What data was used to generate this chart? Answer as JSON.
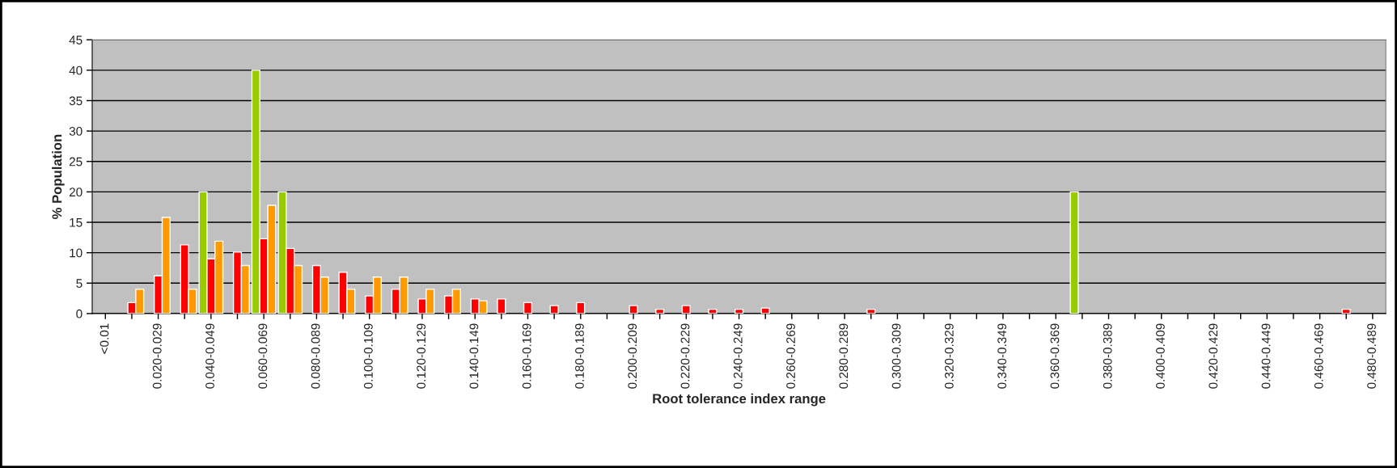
{
  "chart_data": {
    "type": "bar",
    "xlabel": "Root tolerance index range",
    "ylabel": "% Population",
    "categories": [
      "<0.01",
      null,
      "0.020-0.029",
      null,
      "0.040-0.049",
      null,
      "0.060-0.069",
      null,
      "0.080-0.089",
      null,
      "0.100-0.109",
      null,
      "0.120-0.129",
      null,
      "0.140-0.149",
      null,
      "0.160-0.169",
      null,
      "0.180-0.189",
      null,
      "0.200-0.209",
      null,
      "0.220-0.229",
      null,
      "0.240-0.249",
      null,
      "0.260-0.269",
      null,
      "0.280-0.289",
      null,
      "0.300-0.309",
      null,
      "0.320-0.329",
      null,
      "0.340-0.349",
      null,
      "0.360-0.369",
      null,
      "0.380-0.389",
      null,
      "0.400-0.409",
      null,
      "0.420-0.429",
      null,
      "0.440-0.449",
      null,
      "0.460-0.469",
      null,
      "0.480-0.489"
    ],
    "series": [
      {
        "color": "#99cc00",
        "values": [
          null,
          null,
          null,
          null,
          20,
          null,
          40,
          20,
          null,
          null,
          null,
          null,
          null,
          null,
          null,
          null,
          null,
          null,
          null,
          null,
          null,
          null,
          null,
          null,
          null,
          null,
          null,
          null,
          null,
          null,
          null,
          null,
          null,
          null,
          null,
          null,
          null,
          20,
          null,
          null,
          null,
          null,
          null,
          null,
          null,
          null,
          null,
          null,
          null
        ]
      },
      {
        "color": "#ff0000",
        "values": [
          null,
          1.8,
          6.2,
          11.3,
          9.0,
          10.1,
          12.3,
          10.7,
          7.9,
          6.8,
          2.9,
          4.0,
          2.4,
          2.9,
          2.4,
          2.4,
          1.8,
          1.3,
          1.8,
          null,
          1.3,
          0.7,
          1.3,
          0.7,
          0.7,
          0.9,
          null,
          null,
          null,
          0.7,
          null,
          null,
          null,
          null,
          null,
          null,
          null,
          null,
          null,
          null,
          null,
          null,
          null,
          null,
          null,
          null,
          null,
          0.7,
          null
        ]
      },
      {
        "color": "#ff9900",
        "values": [
          null,
          4.0,
          15.8,
          4.0,
          11.9,
          7.9,
          17.8,
          7.9,
          6.0,
          4.0,
          6.0,
          6.0,
          4.0,
          4.0,
          2.1,
          null,
          null,
          null,
          null,
          null,
          null,
          null,
          null,
          null,
          null,
          null,
          null,
          null,
          null,
          null,
          null,
          null,
          null,
          null,
          null,
          null,
          null,
          null,
          null,
          null,
          null,
          null,
          null,
          null,
          null,
          null,
          null,
          null,
          null
        ]
      }
    ],
    "ylim": [
      0,
      45
    ],
    "yticks": [
      0,
      5,
      10,
      15,
      20,
      25,
      30,
      35,
      40,
      45
    ],
    "grid": "y",
    "legend": false
  }
}
